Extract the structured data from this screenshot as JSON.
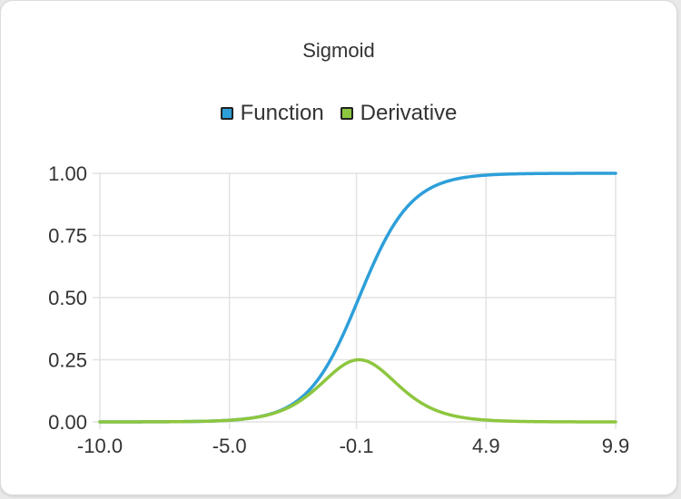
{
  "chart_data": {
    "type": "line",
    "title": "Sigmoid",
    "xlabel": "",
    "ylabel": "",
    "xlim": [
      -10.0,
      9.9
    ],
    "ylim": [
      0,
      1
    ],
    "x_ticks": [
      "-10.0",
      "-5.0",
      "-0.1",
      "4.9",
      "9.9"
    ],
    "y_ticks": [
      "1.00",
      "0.75",
      "0.50",
      "0.25",
      "0.00"
    ],
    "grid": true,
    "legend_position": "top-center",
    "series": [
      {
        "name": "Function",
        "color": "#2d9fd9",
        "x": [
          -10.0,
          -9.0,
          -8.0,
          -7.0,
          -6.0,
          -5.0,
          -4.0,
          -3.5,
          -3.0,
          -2.5,
          -2.0,
          -1.5,
          -1.0,
          -0.5,
          0.0,
          0.5,
          1.0,
          1.5,
          2.0,
          2.5,
          3.0,
          3.5,
          4.0,
          5.0,
          6.0,
          7.0,
          8.0,
          9.0,
          9.9
        ],
        "values": [
          0.0,
          0.0001,
          0.0003,
          0.0009,
          0.0025,
          0.0067,
          0.018,
          0.0293,
          0.0474,
          0.0759,
          0.1192,
          0.1824,
          0.2689,
          0.3775,
          0.5,
          0.6225,
          0.7311,
          0.8176,
          0.8808,
          0.9241,
          0.9526,
          0.9707,
          0.982,
          0.9933,
          0.9975,
          0.9991,
          0.9997,
          0.9999,
          1.0
        ]
      },
      {
        "name": "Derivative",
        "color": "#8dc63f",
        "x": [
          -10.0,
          -9.0,
          -8.0,
          -7.0,
          -6.0,
          -5.0,
          -4.0,
          -3.5,
          -3.0,
          -2.5,
          -2.0,
          -1.5,
          -1.0,
          -0.5,
          0.0,
          0.5,
          1.0,
          1.5,
          2.0,
          2.5,
          3.0,
          3.5,
          4.0,
          5.0,
          6.0,
          7.0,
          8.0,
          9.0,
          9.9
        ],
        "values": [
          0.0,
          0.0001,
          0.0003,
          0.0009,
          0.0025,
          0.0066,
          0.0177,
          0.0285,
          0.0452,
          0.0701,
          0.105,
          0.1491,
          0.1966,
          0.235,
          0.25,
          0.235,
          0.1966,
          0.1491,
          0.105,
          0.0701,
          0.0452,
          0.0285,
          0.0177,
          0.0066,
          0.0025,
          0.0009,
          0.0003,
          0.0001,
          0.0
        ]
      }
    ]
  },
  "legend": {
    "items": [
      {
        "label": "Function",
        "color": "#2d9fd9"
      },
      {
        "label": "Derivative",
        "color": "#8dc63f"
      }
    ]
  }
}
